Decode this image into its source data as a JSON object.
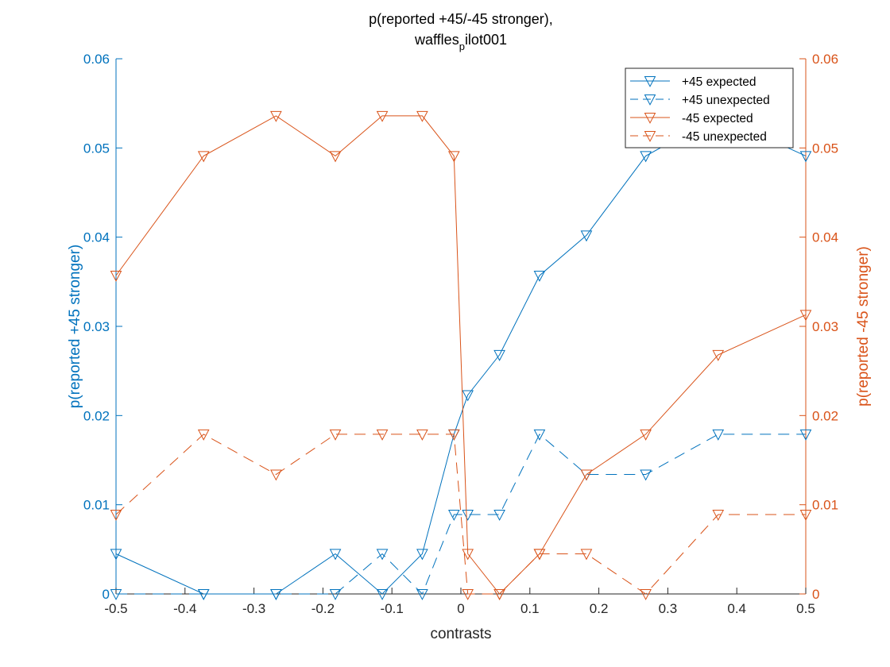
{
  "chart_data": {
    "type": "line",
    "title_line1": "p(reported +45/-45 stronger),",
    "title_line2_main": "waffles",
    "title_line2_sub": "p",
    "title_line2_rest": "ilot001",
    "xlabel": "contrasts",
    "ylabel_left": "p(reported +45 stronger)",
    "ylabel_right": "p(reported -45 stronger)",
    "xlim": [
      -0.5,
      0.5
    ],
    "ylim_left": [
      0,
      0.06
    ],
    "ylim_right": [
      0,
      0.06
    ],
    "x_ticks": [
      "-0.5",
      "-0.4",
      "-0.3",
      "-0.2",
      "-0.1",
      "0",
      "0.1",
      "0.2",
      "0.3",
      "0.4",
      "0.5"
    ],
    "y_ticks_left": [
      "0",
      "0.01",
      "0.02",
      "0.03",
      "0.04",
      "0.05",
      "0.06"
    ],
    "y_ticks_right": [
      "0",
      "0.01",
      "0.02",
      "0.03",
      "0.04",
      "0.05",
      "0.06"
    ],
    "x": [
      -0.5,
      -0.373,
      -0.268,
      -0.182,
      -0.114,
      -0.056,
      -0.01,
      0.01,
      0.056,
      0.114,
      0.182,
      0.268,
      0.373,
      0.5
    ],
    "legend_position": "top-right",
    "series": [
      {
        "name": "+45 expected",
        "color": "#0072BD",
        "dash": "solid",
        "axis": "left",
        "values": [
          0.0045,
          0.0,
          0.0,
          0.0045,
          0.0,
          0.0045,
          0.0179,
          0.0223,
          0.0268,
          0.0357,
          0.0402,
          0.0491,
          0.0536,
          0.0491
        ]
      },
      {
        "name": "+45 unexpected",
        "color": "#0072BD",
        "dash": "dashed",
        "axis": "left",
        "values": [
          0.0,
          0.0,
          0.0,
          0.0,
          0.0045,
          0.0,
          0.0089,
          0.0089,
          0.0089,
          0.0179,
          0.0134,
          0.0134,
          0.0179,
          0.0179
        ]
      },
      {
        "name": "-45 expected",
        "color": "#D95319",
        "dash": "solid",
        "axis": "right",
        "values": [
          0.0357,
          0.0491,
          0.0536,
          0.0491,
          0.0536,
          0.0536,
          0.0491,
          0.0045,
          0.0,
          0.0045,
          0.0134,
          0.0179,
          0.0268,
          0.0313
        ]
      },
      {
        "name": "-45 unexpected",
        "color": "#D95319",
        "dash": "dashed",
        "axis": "right",
        "values": [
          0.0089,
          0.0179,
          0.0134,
          0.0179,
          0.0179,
          0.0179,
          0.0179,
          0.0,
          0.0,
          0.0045,
          0.0045,
          0.0,
          0.0089,
          0.0089
        ]
      }
    ]
  }
}
